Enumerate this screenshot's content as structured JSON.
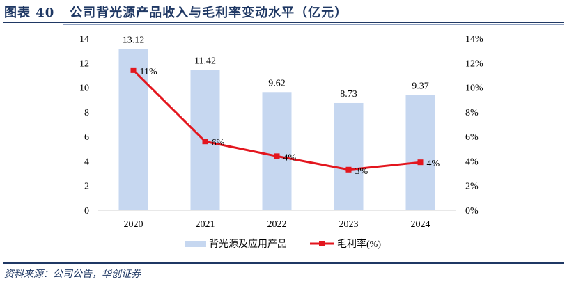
{
  "title": "图表 40   公司背光源产品收入与毛利率变动水平（亿元）",
  "source": "资料来源：公司公告，华创证券",
  "colors": {
    "bar": "#c6d7f0",
    "line": "#e3161e",
    "title": "#1f3864"
  },
  "chart_data": {
    "type": "bar+line",
    "categories": [
      "2020",
      "2021",
      "2022",
      "2023",
      "2024"
    ],
    "series": [
      {
        "name": "背光源及应用产品",
        "type": "bar",
        "axis": "left",
        "values": [
          13.12,
          11.42,
          9.62,
          8.73,
          9.37
        ],
        "labels": [
          "13.12",
          "11.42",
          "9.62",
          "8.73",
          "9.37"
        ]
      },
      {
        "name": "毛利率(%)",
        "type": "line",
        "axis": "right",
        "values": [
          11.4,
          5.6,
          4.4,
          3.3,
          3.9
        ],
        "labels": [
          "11%",
          "6%",
          "4%",
          "3%",
          "4%"
        ]
      }
    ],
    "left_axis": {
      "ylim": [
        0,
        14
      ],
      "ticks": [
        "0",
        "2",
        "4",
        "6",
        "8",
        "10",
        "12",
        "14"
      ]
    },
    "right_axis": {
      "ylim": [
        0,
        14
      ],
      "ticks": [
        "0%",
        "2%",
        "4%",
        "6%",
        "8%",
        "10%",
        "12%",
        "14%"
      ]
    },
    "legend_position": "bottom",
    "grid": false
  }
}
